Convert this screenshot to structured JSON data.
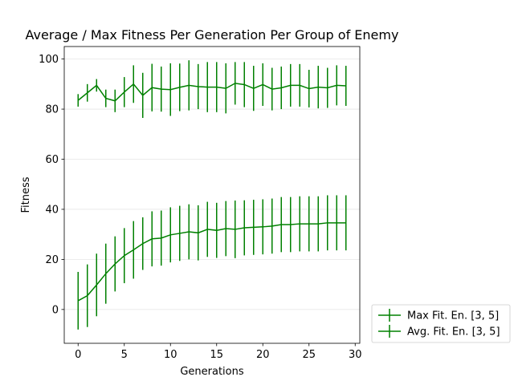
{
  "chart_data": {
    "type": "line",
    "title": "Average / Max Fitness Per Generation Per Group of Enemy",
    "xlabel": "Generations",
    "ylabel": "Fitness",
    "xlim": [
      -1.5,
      30.5
    ],
    "ylim": [
      -13.5,
      105
    ],
    "xticks": [
      0,
      5,
      10,
      15,
      20,
      25,
      30
    ],
    "yticks": [
      0,
      20,
      40,
      60,
      80,
      100
    ],
    "grid": true,
    "legend_position": "outside-bottom-right",
    "x": [
      0,
      1,
      2,
      3,
      4,
      5,
      6,
      7,
      8,
      9,
      10,
      11,
      12,
      13,
      14,
      15,
      16,
      17,
      18,
      19,
      20,
      21,
      22,
      23,
      24,
      25,
      26,
      27,
      28,
      29
    ],
    "series": [
      {
        "name": "Max Fit. En. [3, 5]",
        "color": "#008000",
        "values": [
          83.5,
          86.5,
          89.5,
          84.3,
          83.3,
          86.8,
          90.0,
          85.5,
          88.6,
          88.0,
          87.8,
          88.7,
          89.5,
          89.0,
          88.8,
          88.8,
          88.3,
          90.3,
          89.8,
          88.3,
          89.8,
          88.0,
          88.5,
          89.5,
          89.5,
          88.2,
          88.8,
          88.5,
          89.5,
          89.3
        ],
        "errors": [
          2.5,
          3.5,
          2.5,
          3.5,
          4.5,
          6.0,
          7.5,
          9.0,
          9.5,
          9.0,
          10.5,
          9.5,
          10.0,
          9.0,
          10.0,
          10.0,
          10.0,
          8.5,
          9.0,
          9.0,
          8.5,
          8.5,
          8.5,
          8.5,
          8.5,
          7.5,
          8.5,
          8.0,
          8.0,
          8.0
        ]
      },
      {
        "name": "Avg. Fit. En. [3, 5]",
        "color": "#008000",
        "values": [
          3.5,
          5.5,
          9.8,
          14.3,
          18.2,
          21.5,
          23.8,
          26.3,
          28.2,
          28.5,
          29.8,
          30.4,
          31.0,
          30.6,
          32.0,
          31.6,
          32.3,
          32.0,
          32.6,
          32.8,
          33.0,
          33.3,
          33.9,
          33.9,
          34.2,
          34.2,
          34.2,
          34.6,
          34.6,
          34.6
        ],
        "errors": [
          11.5,
          12.5,
          12.5,
          12.0,
          11.0,
          11.0,
          11.5,
          10.5,
          11.0,
          11.0,
          11.0,
          11.0,
          11.0,
          11.0,
          11.0,
          11.0,
          11.0,
          11.5,
          11.0,
          11.0,
          11.0,
          11.0,
          11.0,
          11.0,
          11.0,
          11.0,
          11.0,
          11.0,
          11.0,
          11.0
        ]
      }
    ]
  }
}
